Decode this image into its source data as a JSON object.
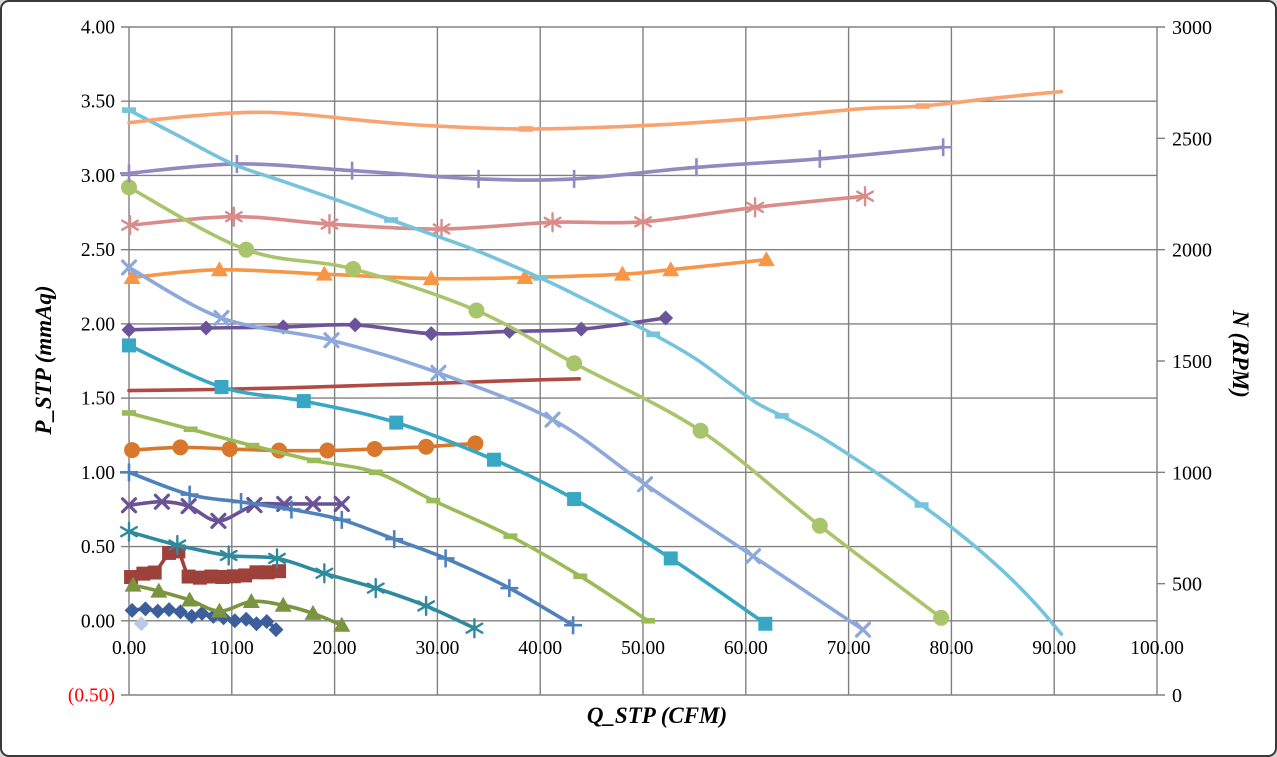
{
  "figure": {
    "background": "#FFFFFF",
    "border_color": "#3A3A3A"
  },
  "chart_data": {
    "type": "line",
    "title": "",
    "xlabel": "Q_STP (CFM)",
    "ylabel_left": "P_STP (mmAq)",
    "ylabel_right": "N (RPM)",
    "grid_color": "#808080",
    "tick_label_color": "#000000",
    "negative_label_color": "#FF0000",
    "x_axis": {
      "min": 0,
      "max": 100,
      "step": 10,
      "tick_labels": [
        {
          "text": "0.00",
          "value": 0
        },
        {
          "text": "10.00",
          "value": 10
        },
        {
          "text": "20.00",
          "value": 20
        },
        {
          "text": "30.00",
          "value": 30
        },
        {
          "text": "40.00",
          "value": 40
        },
        {
          "text": "50.00",
          "value": 50
        },
        {
          "text": "60.00",
          "value": 60
        },
        {
          "text": "70.00",
          "value": 70
        },
        {
          "text": "80.00",
          "value": 80
        },
        {
          "text": "90.00",
          "value": 90
        },
        {
          "text": "100.00",
          "value": 100
        }
      ]
    },
    "y_left": {
      "min": -0.5,
      "max": 4.0,
      "step": 0.5,
      "tick_labels": [
        {
          "text": "4.00",
          "value": 4.0
        },
        {
          "text": "3.50",
          "value": 3.5
        },
        {
          "text": "3.00",
          "value": 3.0
        },
        {
          "text": "2.50",
          "value": 2.5
        },
        {
          "text": "2.00",
          "value": 2.0
        },
        {
          "text": "1.50",
          "value": 1.5
        },
        {
          "text": "1.00",
          "value": 1.0
        },
        {
          "text": "0.50",
          "value": 0.5
        },
        {
          "text": "0.00",
          "value": 0.0
        },
        {
          "text": "(0.50)",
          "value": -0.5,
          "color": "#FF0000"
        }
      ]
    },
    "y_right": {
      "min": 0,
      "max": 3000,
      "step": 500,
      "tick_labels": [
        {
          "text": "3000",
          "value": 3000
        },
        {
          "text": "2500",
          "value": 2500
        },
        {
          "text": "2000",
          "value": 2000
        },
        {
          "text": "1500",
          "value": 1500
        },
        {
          "text": "1000",
          "value": 1000
        },
        {
          "text": "500",
          "value": 500
        },
        {
          "text": "0",
          "value": 0
        }
      ]
    },
    "legend": "none",
    "series": [
      {
        "id": "pressure-curve-1",
        "axis": "left",
        "color": "#3C5F9C",
        "marker": "diamond",
        "line": true,
        "points": [
          [
            0.3,
            0.07
          ],
          [
            1.6,
            0.08
          ],
          [
            2.8,
            0.065
          ],
          [
            3.9,
            0.075
          ],
          [
            5.0,
            0.06
          ],
          [
            6.1,
            0.03
          ],
          [
            7.1,
            0.05
          ],
          [
            8.2,
            0.03
          ],
          [
            9.2,
            0.02
          ],
          [
            10.3,
            0.0
          ],
          [
            11.4,
            0.01
          ],
          [
            12.4,
            -0.02
          ],
          [
            13.4,
            -0.005
          ],
          [
            14.3,
            -0.06
          ]
        ]
      },
      {
        "id": "stray-point",
        "axis": "left",
        "color": "#B9C9E6",
        "marker": "diamond",
        "line": false,
        "points": [
          [
            1.2,
            -0.02
          ]
        ]
      },
      {
        "id": "rpm-curve-1",
        "axis": "right",
        "color": "#9E413B",
        "marker": "square",
        "line": true,
        "points": [
          [
            0.2,
            530
          ],
          [
            1.4,
            545
          ],
          [
            2.5,
            550
          ],
          [
            3.9,
            638
          ],
          [
            4.8,
            645
          ],
          [
            5.8,
            532
          ],
          [
            6.9,
            527
          ],
          [
            8.0,
            532
          ],
          [
            9.1,
            530
          ],
          [
            10.2,
            533
          ],
          [
            11.3,
            537
          ],
          [
            12.4,
            551
          ],
          [
            13.5,
            551
          ],
          [
            14.6,
            556
          ]
        ]
      },
      {
        "id": "pressure-curve-2",
        "axis": "left",
        "color": "#7A9440",
        "marker": "triangle",
        "line": true,
        "points": [
          [
            0.4,
            0.24
          ],
          [
            2.9,
            0.2
          ],
          [
            5.9,
            0.14
          ],
          [
            8.8,
            0.065
          ],
          [
            11.9,
            0.13
          ],
          [
            15.0,
            0.105
          ],
          [
            17.9,
            0.05
          ],
          [
            20.7,
            -0.03
          ]
        ]
      },
      {
        "id": "rpm-curve-2",
        "axis": "right",
        "color": "#6A5296",
        "marker": "x",
        "line": true,
        "points": [
          [
            0,
            852
          ],
          [
            3.2,
            868
          ],
          [
            5.8,
            848
          ],
          [
            8.7,
            782
          ],
          [
            12.2,
            853
          ],
          [
            15.1,
            858
          ],
          [
            17.9,
            858
          ],
          [
            20.7,
            858
          ]
        ]
      },
      {
        "id": "pressure-curve-3",
        "axis": "left",
        "color": "#2F8A9E",
        "marker": "asterisk",
        "line": true,
        "points": [
          [
            0,
            0.6
          ],
          [
            4.7,
            0.51
          ],
          [
            9.7,
            0.44
          ],
          [
            14.4,
            0.42
          ],
          [
            19.0,
            0.32
          ],
          [
            24.0,
            0.22
          ],
          [
            28.9,
            0.1
          ],
          [
            33.6,
            -0.05
          ]
        ]
      },
      {
        "id": "rpm-curve-3",
        "axis": "right",
        "color": "#D9782D",
        "marker": "circle",
        "line": true,
        "points": [
          [
            0.3,
            1100
          ],
          [
            5.0,
            1112
          ],
          [
            9.8,
            1105
          ],
          [
            14.6,
            1098
          ],
          [
            19.3,
            1098
          ],
          [
            23.9,
            1105
          ],
          [
            28.9,
            1115
          ],
          [
            33.7,
            1130
          ]
        ]
      },
      {
        "id": "pressure-curve-4",
        "axis": "left",
        "color": "#4F81BD",
        "marker": "plus",
        "line": true,
        "points": [
          [
            0,
            1.0
          ],
          [
            5.9,
            0.85
          ],
          [
            10.9,
            0.8
          ],
          [
            15.8,
            0.75
          ],
          [
            20.7,
            0.68
          ],
          [
            25.8,
            0.55
          ],
          [
            30.8,
            0.42
          ],
          [
            37.0,
            0.22
          ],
          [
            43.2,
            -0.03
          ]
        ]
      },
      {
        "id": "rpm-curve-4",
        "axis": "right",
        "color": "#B04A45",
        "marker": "none",
        "line": true,
        "points": [
          [
            0,
            1367
          ],
          [
            8,
            1372
          ],
          [
            16,
            1380
          ],
          [
            24,
            1392
          ],
          [
            32,
            1403
          ],
          [
            38,
            1413
          ],
          [
            43.8,
            1420
          ]
        ]
      },
      {
        "id": "pressure-curve-5",
        "axis": "left",
        "color": "#9BBB59",
        "marker": "dash",
        "line": true,
        "points": [
          [
            0,
            1.4
          ],
          [
            6,
            1.29
          ],
          [
            12,
            1.18
          ],
          [
            18,
            1.08
          ],
          [
            24,
            1.0
          ],
          [
            29.6,
            0.81
          ],
          [
            37.1,
            0.57
          ],
          [
            43.9,
            0.3
          ],
          [
            50.5,
            0.0
          ]
        ]
      },
      {
        "id": "rpm-curve-5",
        "axis": "right",
        "color": "#6C549B",
        "marker": "diamond",
        "line": true,
        "points": [
          [
            0,
            1640
          ],
          [
            7.5,
            1648
          ],
          [
            15,
            1653
          ],
          [
            22,
            1662
          ],
          [
            29.4,
            1623
          ],
          [
            37,
            1633
          ],
          [
            44,
            1643
          ],
          [
            52.2,
            1693
          ]
        ]
      },
      {
        "id": "pressure-curve-6",
        "axis": "left",
        "color": "#38A7C4",
        "marker": "square",
        "line": true,
        "points": [
          [
            0,
            1.855
          ],
          [
            9.0,
            1.575
          ],
          [
            17.0,
            1.48
          ],
          [
            26.0,
            1.335
          ],
          [
            35.5,
            1.085
          ],
          [
            43.3,
            0.82
          ],
          [
            52.7,
            0.42
          ],
          [
            61.9,
            -0.02
          ]
        ]
      },
      {
        "id": "rpm-curve-6",
        "axis": "right",
        "color": "#F79646",
        "marker": "triangle",
        "line": true,
        "points": [
          [
            0.3,
            1875
          ],
          [
            8.8,
            1910
          ],
          [
            19,
            1890
          ],
          [
            29.4,
            1870
          ],
          [
            38.5,
            1875
          ],
          [
            48,
            1890
          ],
          [
            52.7,
            1910
          ],
          [
            62,
            1955
          ]
        ]
      },
      {
        "id": "pressure-curve-7",
        "axis": "left",
        "color": "#8DA9DB",
        "marker": "x",
        "line": true,
        "points": [
          [
            0,
            2.38
          ],
          [
            9.0,
            2.04
          ],
          [
            19.7,
            1.89
          ],
          [
            30.1,
            1.67
          ],
          [
            41.2,
            1.355
          ],
          [
            50.2,
            0.92
          ],
          [
            60.7,
            0.435
          ],
          [
            71.4,
            -0.06
          ]
        ]
      },
      {
        "id": "rpm-curve-7",
        "axis": "right",
        "color": "#D98C8A",
        "marker": "asterisk",
        "line": true,
        "points": [
          [
            0.1,
            2110
          ],
          [
            10.2,
            2148
          ],
          [
            19.5,
            2115
          ],
          [
            30.4,
            2093
          ],
          [
            41.2,
            2123
          ],
          [
            50,
            2125
          ],
          [
            60.9,
            2190
          ],
          [
            71.6,
            2240
          ]
        ]
      },
      {
        "id": "pressure-curve-8",
        "axis": "left",
        "color": "#A9C56B",
        "marker": "circle",
        "line": true,
        "points": [
          [
            0,
            2.92
          ],
          [
            11.4,
            2.5
          ],
          [
            21.8,
            2.37
          ],
          [
            33.8,
            2.09
          ],
          [
            43.3,
            1.735
          ],
          [
            55.6,
            1.28
          ],
          [
            67.2,
            0.64
          ],
          [
            79.0,
            0.02
          ]
        ]
      },
      {
        "id": "rpm-curve-8",
        "axis": "right",
        "color": "#9488C0",
        "marker": "plus",
        "line": true,
        "points": [
          [
            0,
            2343
          ],
          [
            10.5,
            2385
          ],
          [
            21.7,
            2355
          ],
          [
            34,
            2318
          ],
          [
            43.3,
            2318
          ],
          [
            55.2,
            2370
          ],
          [
            67.2,
            2408
          ],
          [
            79.2,
            2460
          ]
        ]
      },
      {
        "id": "pressure-curve-9",
        "axis": "left",
        "color": "#76C3DC",
        "marker": "dash",
        "line": true,
        "marker_at": [
          0,
          25.5,
          40,
          51,
          63.5,
          77.1
        ],
        "points": [
          [
            0,
            3.44
          ],
          [
            5,
            3.26
          ],
          [
            10,
            3.08
          ],
          [
            15,
            2.96
          ],
          [
            20,
            2.84
          ],
          [
            25.5,
            2.7
          ],
          [
            30,
            2.59
          ],
          [
            34.3,
            2.48
          ],
          [
            40,
            2.31
          ],
          [
            44.2,
            2.17
          ],
          [
            51,
            1.93
          ],
          [
            55,
            1.77
          ],
          [
            58.2,
            1.61
          ],
          [
            61,
            1.47
          ],
          [
            63.5,
            1.38
          ],
          [
            67,
            1.25
          ],
          [
            70,
            1.12
          ],
          [
            73.5,
            0.96
          ],
          [
            77.1,
            0.78
          ],
          [
            80,
            0.63
          ],
          [
            83,
            0.46
          ],
          [
            86,
            0.27
          ],
          [
            88.5,
            0.09
          ],
          [
            90.7,
            -0.09
          ]
        ]
      },
      {
        "id": "rpm-curve-9",
        "axis": "right",
        "color": "#F9A470",
        "marker": "dash",
        "line": true,
        "marker_at": [
          38.6,
          77.2
        ],
        "points": [
          [
            0,
            2570
          ],
          [
            6,
            2600
          ],
          [
            12,
            2617
          ],
          [
            17,
            2607
          ],
          [
            24,
            2575
          ],
          [
            30,
            2555
          ],
          [
            38.6,
            2542
          ],
          [
            50,
            2557
          ],
          [
            61,
            2590
          ],
          [
            71,
            2632
          ],
          [
            77.2,
            2645
          ],
          [
            84,
            2680
          ],
          [
            90.7,
            2710
          ]
        ]
      }
    ]
  }
}
